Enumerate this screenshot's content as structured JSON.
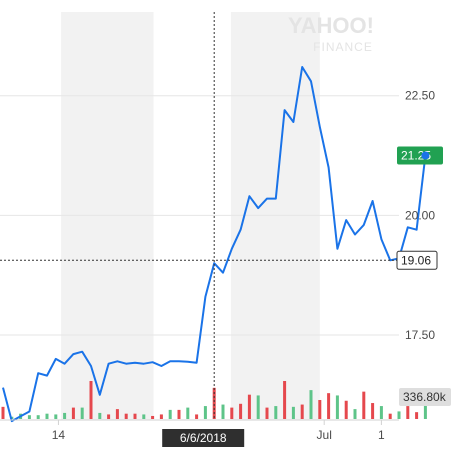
{
  "brand": {
    "logo_text": "YAHOO!",
    "sub_text": "FINANCE"
  },
  "colors": {
    "line": "#1a73e8",
    "last_price_tag": "#21a152",
    "crosshair_tag": "#333333",
    "volume_up": "#5ec489",
    "volume_down": "#e5484d",
    "volume_tag": "#dedede",
    "shade": "#f2f2f2"
  },
  "chart_data": {
    "type": "line",
    "ylim": [
      15.2,
      24.5
    ],
    "y_ticks": [
      {
        "value": 17.5,
        "label": "17.50"
      },
      {
        "value": 20.0,
        "label": "20.00"
      },
      {
        "value": 22.5,
        "label": "22.50"
      }
    ],
    "x_tick_labels": [
      {
        "index": 6.3,
        "label": "14"
      },
      {
        "index": 36.5,
        "label": "Jul"
      },
      {
        "index": 43.0,
        "label": "1"
      }
    ],
    "shaded_index_ranges": [
      [
        6.6,
        17.1
      ],
      [
        25.9,
        36.0
      ]
    ],
    "price": [
      16.4,
      15.7,
      15.8,
      15.9,
      16.7,
      16.65,
      17.0,
      16.9,
      17.1,
      17.15,
      16.85,
      16.25,
      16.9,
      16.95,
      16.9,
      16.92,
      16.9,
      16.93,
      16.85,
      16.95,
      16.95,
      16.94,
      16.92,
      18.3,
      19.0,
      18.8,
      19.3,
      19.7,
      20.4,
      20.15,
      20.35,
      20.35,
      22.2,
      21.95,
      23.1,
      22.8,
      21.85,
      21.0,
      19.3,
      19.9,
      19.6,
      19.8,
      20.3,
      19.5,
      19.06,
      19.1,
      19.75,
      19.7,
      21.25
    ],
    "volume_direction": [
      "down",
      "up",
      "up",
      "up",
      "up",
      "up",
      "up",
      "up",
      "down",
      "up",
      "down",
      "up",
      "down",
      "down",
      "down",
      "down",
      "up",
      "down",
      "down",
      "up",
      "down",
      "up",
      "down",
      "up",
      "down",
      "up",
      "down",
      "down",
      "down",
      "up",
      "down",
      "up",
      "down",
      "up",
      "down",
      "up",
      "down",
      "down",
      "up",
      "down",
      "up",
      "down",
      "down",
      "up",
      "down",
      "up",
      "down",
      "down",
      "up"
    ],
    "volume_relative": [
      0.32,
      0.06,
      0.14,
      0.1,
      0.1,
      0.14,
      0.12,
      0.16,
      0.3,
      0.3,
      1.0,
      0.16,
      0.12,
      0.26,
      0.14,
      0.14,
      0.12,
      0.08,
      0.12,
      0.24,
      0.24,
      0.3,
      0.12,
      0.34,
      0.82,
      0.38,
      0.3,
      0.4,
      0.64,
      0.62,
      0.3,
      0.34,
      1.0,
      0.32,
      0.38,
      0.76,
      0.5,
      0.68,
      0.62,
      0.48,
      0.26,
      0.72,
      0.42,
      0.34,
      0.14,
      0.2,
      0.34,
      0.18,
      0.48
    ],
    "last_price": "21.25",
    "crosshair": {
      "index": 24,
      "price": "19.06",
      "date_label": "6/6/2018"
    },
    "volume_label": "336.80k",
    "grid": true
  }
}
